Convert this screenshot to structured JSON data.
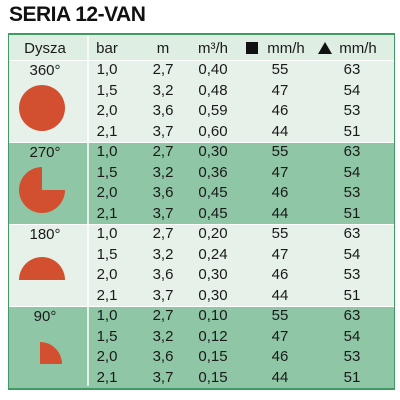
{
  "title": "SERIA 12-VAN",
  "table": {
    "header": [
      "Dysza",
      "bar",
      "m",
      "m³/h",
      "mm/h",
      "mm/h"
    ],
    "groups": [
      {
        "label": "360°",
        "rows": [
          [
            "1,0",
            "2,7",
            "0,40",
            "55",
            "63"
          ],
          [
            "1,5",
            "3,2",
            "0,48",
            "47",
            "54"
          ],
          [
            "2,0",
            "3,6",
            "0,59",
            "46",
            "53"
          ],
          [
            "2,1",
            "3,7",
            "0,60",
            "44",
            "51"
          ]
        ]
      },
      {
        "label": "270°",
        "rows": [
          [
            "1,0",
            "2,7",
            "0,30",
            "55",
            "63"
          ],
          [
            "1,5",
            "3,2",
            "0,36",
            "47",
            "54"
          ],
          [
            "2,0",
            "3,6",
            "0,45",
            "46",
            "53"
          ],
          [
            "2,1",
            "3,7",
            "0,45",
            "44",
            "51"
          ]
        ]
      },
      {
        "label": "180°",
        "rows": [
          [
            "1,0",
            "2,7",
            "0,20",
            "55",
            "63"
          ],
          [
            "1,5",
            "3,2",
            "0,24",
            "47",
            "54"
          ],
          [
            "2,0",
            "3,6",
            "0,30",
            "46",
            "53"
          ],
          [
            "2,1",
            "3,7",
            "0,30",
            "44",
            "51"
          ]
        ]
      },
      {
        "label": "90°",
        "rows": [
          [
            "1,0",
            "2,7",
            "0,10",
            "55",
            "63"
          ],
          [
            "1,5",
            "3,2",
            "0,12",
            "47",
            "54"
          ],
          [
            "2,0",
            "3,6",
            "0,15",
            "46",
            "53"
          ],
          [
            "2,1",
            "3,7",
            "0,15",
            "44",
            "51"
          ]
        ]
      }
    ]
  }
}
